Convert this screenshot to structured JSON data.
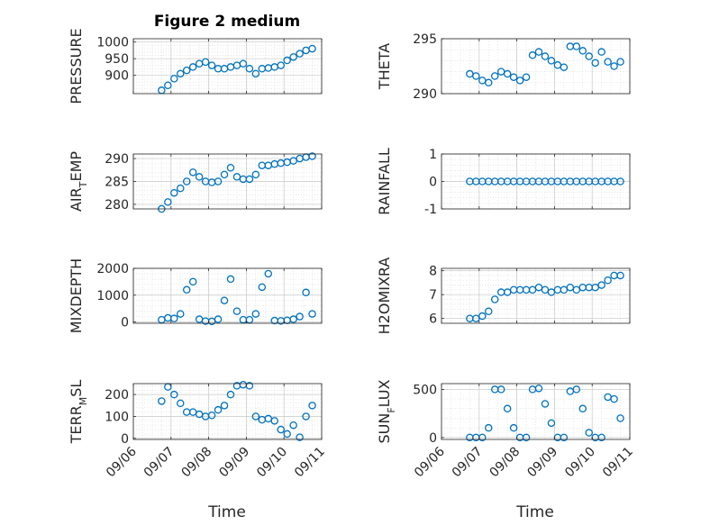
{
  "figure": {
    "title": "Figure 2 medium",
    "xlabel": "Time"
  },
  "style": {
    "marker_color": "#0072BD",
    "axis_color": "#262626",
    "grid_color": "#d9d9d9"
  },
  "chart_data": [
    {
      "type": "scatter",
      "ylabel": "PRESSURE",
      "ylabel_parts": [
        "PRESSURE"
      ],
      "title": "Figure 2 medium",
      "ylim": [
        845,
        1010
      ],
      "yticks": [
        900,
        950,
        1000
      ],
      "ytick_labels": [
        "900",
        "950",
        "1000"
      ],
      "x": [
        "09/06 18:00",
        "09/06 22:00",
        "09/07 02:00",
        "09/07 06:00",
        "09/07 10:00",
        "09/07 14:00",
        "09/07 18:00",
        "09/07 22:00",
        "09/08 02:00",
        "09/08 06:00",
        "09/08 10:00",
        "09/08 14:00",
        "09/08 18:00",
        "09/08 22:00",
        "09/09 02:00",
        "09/09 06:00",
        "09/09 10:00",
        "09/09 14:00",
        "09/09 18:00",
        "09/09 22:00",
        "09/10 02:00",
        "09/10 06:00",
        "09/10 10:00",
        "09/10 14:00",
        "09/10 18:00"
      ],
      "y": [
        855,
        870,
        890,
        905,
        915,
        925,
        935,
        940,
        930,
        920,
        920,
        925,
        930,
        935,
        920,
        905,
        920,
        922,
        925,
        930,
        945,
        955,
        965,
        975,
        980
      ]
    },
    {
      "type": "scatter",
      "ylabel": "THETA",
      "ylabel_parts": [
        "THETA"
      ],
      "ylim": [
        290,
        295
      ],
      "yticks": [
        290,
        295
      ],
      "ytick_labels": [
        "290",
        "295"
      ],
      "x": [
        "09/06 18:00",
        "09/06 22:00",
        "09/07 02:00",
        "09/07 06:00",
        "09/07 10:00",
        "09/07 14:00",
        "09/07 18:00",
        "09/07 22:00",
        "09/08 02:00",
        "09/08 06:00",
        "09/08 10:00",
        "09/08 14:00",
        "09/08 18:00",
        "09/08 22:00",
        "09/09 02:00",
        "09/09 06:00",
        "09/09 10:00",
        "09/09 14:00",
        "09/09 18:00",
        "09/09 22:00",
        "09/10 02:00",
        "09/10 06:00",
        "09/10 10:00",
        "09/10 14:00",
        "09/10 18:00"
      ],
      "y": [
        291.8,
        291.6,
        291.2,
        291.0,
        291.6,
        292.0,
        291.8,
        291.5,
        291.2,
        291.5,
        293.5,
        293.8,
        293.4,
        293.0,
        292.6,
        292.4,
        294.3,
        294.3,
        293.9,
        293.4,
        292.8,
        293.8,
        292.9,
        292.5,
        292.9
      ]
    },
    {
      "type": "scatter",
      "ylabel": "AIR_TEMP",
      "ylabel_parts": [
        "AIR",
        "T",
        "EMP"
      ],
      "ylim": [
        279,
        291
      ],
      "yticks": [
        280,
        285,
        290
      ],
      "ytick_labels": [
        "280",
        "285",
        "290"
      ],
      "x": [
        "09/06 18:00",
        "09/06 22:00",
        "09/07 02:00",
        "09/07 06:00",
        "09/07 10:00",
        "09/07 14:00",
        "09/07 18:00",
        "09/07 22:00",
        "09/08 02:00",
        "09/08 06:00",
        "09/08 10:00",
        "09/08 14:00",
        "09/08 18:00",
        "09/08 22:00",
        "09/09 02:00",
        "09/09 06:00",
        "09/09 10:00",
        "09/09 14:00",
        "09/09 18:00",
        "09/09 22:00",
        "09/10 02:00",
        "09/10 06:00",
        "09/10 10:00",
        "09/10 14:00",
        "09/10 18:00"
      ],
      "y": [
        279.0,
        280.5,
        282.5,
        283.5,
        285.0,
        287.0,
        286.0,
        285.0,
        284.8,
        285.0,
        286.5,
        288.0,
        286.0,
        285.5,
        285.5,
        286.5,
        288.5,
        288.5,
        288.8,
        289.0,
        289.2,
        289.5,
        290.0,
        290.3,
        290.5
      ]
    },
    {
      "type": "scatter",
      "ylabel": "RAINFALL",
      "ylabel_parts": [
        "RAINFALL"
      ],
      "ylim": [
        -1,
        1
      ],
      "yticks": [
        -1,
        0,
        1
      ],
      "ytick_labels": [
        "-1",
        "0",
        "1"
      ],
      "x": [
        "09/06 18:00",
        "09/06 22:00",
        "09/07 02:00",
        "09/07 06:00",
        "09/07 10:00",
        "09/07 14:00",
        "09/07 18:00",
        "09/07 22:00",
        "09/08 02:00",
        "09/08 06:00",
        "09/08 10:00",
        "09/08 14:00",
        "09/08 18:00",
        "09/08 22:00",
        "09/09 02:00",
        "09/09 06:00",
        "09/09 10:00",
        "09/09 14:00",
        "09/09 18:00",
        "09/09 22:00",
        "09/10 02:00",
        "09/10 06:00",
        "09/10 10:00",
        "09/10 14:00",
        "09/10 18:00"
      ],
      "y": [
        0,
        0,
        0,
        0,
        0,
        0,
        0,
        0,
        0,
        0,
        0,
        0,
        0,
        0,
        0,
        0,
        0,
        0,
        0,
        0,
        0,
        0,
        0,
        0,
        0
      ]
    },
    {
      "type": "scatter",
      "ylabel": "MIXDEPTH",
      "ylabel_parts": [
        "MIXDEPTH"
      ],
      "ylim": [
        -50,
        2000
      ],
      "yticks": [
        0,
        1000,
        2000
      ],
      "ytick_labels": [
        "0",
        "1000",
        "2000"
      ],
      "x": [
        "09/06 18:00",
        "09/06 22:00",
        "09/07 02:00",
        "09/07 06:00",
        "09/07 10:00",
        "09/07 14:00",
        "09/07 18:00",
        "09/07 22:00",
        "09/08 02:00",
        "09/08 06:00",
        "09/08 10:00",
        "09/08 14:00",
        "09/08 18:00",
        "09/08 22:00",
        "09/09 02:00",
        "09/09 06:00",
        "09/09 10:00",
        "09/09 14:00",
        "09/09 18:00",
        "09/09 22:00",
        "09/10 02:00",
        "09/10 06:00",
        "09/10 10:00",
        "09/10 14:00",
        "09/10 18:00"
      ],
      "y": [
        80,
        150,
        130,
        300,
        1200,
        1500,
        100,
        30,
        20,
        100,
        800,
        1600,
        400,
        80,
        80,
        300,
        1300,
        1800,
        50,
        40,
        60,
        100,
        200,
        1100,
        300
      ]
    },
    {
      "type": "scatter",
      "ylabel": "H2OMIXRA",
      "ylabel_parts": [
        "H2OMIXRA"
      ],
      "ylim": [
        5.8,
        8.1
      ],
      "yticks": [
        6,
        7,
        8
      ],
      "ytick_labels": [
        "6",
        "7",
        "8"
      ],
      "x": [
        "09/06 18:00",
        "09/06 22:00",
        "09/07 02:00",
        "09/07 06:00",
        "09/07 10:00",
        "09/07 14:00",
        "09/07 18:00",
        "09/07 22:00",
        "09/08 02:00",
        "09/08 06:00",
        "09/08 10:00",
        "09/08 14:00",
        "09/08 18:00",
        "09/08 22:00",
        "09/09 02:00",
        "09/09 06:00",
        "09/09 10:00",
        "09/09 14:00",
        "09/09 18:00",
        "09/09 22:00",
        "09/10 02:00",
        "09/10 06:00",
        "09/10 10:00",
        "09/10 14:00",
        "09/10 18:00"
      ],
      "y": [
        6.0,
        6.0,
        6.1,
        6.3,
        6.8,
        7.1,
        7.1,
        7.2,
        7.2,
        7.2,
        7.2,
        7.3,
        7.2,
        7.1,
        7.2,
        7.2,
        7.3,
        7.2,
        7.3,
        7.3,
        7.3,
        7.4,
        7.6,
        7.8,
        7.8
      ]
    },
    {
      "type": "scatter",
      "ylabel": "TERR_MSL",
      "ylabel_parts": [
        "TERR",
        "M",
        "SL"
      ],
      "ylim": [
        -5,
        250
      ],
      "yticks": [
        0,
        100,
        200
      ],
      "ytick_labels": [
        "0",
        "100",
        "200"
      ],
      "x": [
        "09/06 18:00",
        "09/06 22:00",
        "09/07 02:00",
        "09/07 06:00",
        "09/07 10:00",
        "09/07 14:00",
        "09/07 18:00",
        "09/07 22:00",
        "09/08 02:00",
        "09/08 06:00",
        "09/08 10:00",
        "09/08 14:00",
        "09/08 18:00",
        "09/08 22:00",
        "09/09 02:00",
        "09/09 06:00",
        "09/09 10:00",
        "09/09 14:00",
        "09/09 18:00",
        "09/09 22:00",
        "09/10 02:00",
        "09/10 06:00",
        "09/10 10:00",
        "09/10 14:00",
        "09/10 18:00"
      ],
      "y": [
        170,
        235,
        200,
        160,
        120,
        120,
        110,
        100,
        105,
        130,
        150,
        200,
        240,
        245,
        240,
        100,
        85,
        90,
        80,
        40,
        20,
        60,
        5,
        100,
        150
      ]
    },
    {
      "type": "scatter",
      "ylabel": "SUN_FLUX",
      "ylabel_parts": [
        "SUN",
        "F",
        "LUX"
      ],
      "ylim": [
        -20,
        560
      ],
      "yticks": [
        0,
        500
      ],
      "ytick_labels": [
        "0",
        "500"
      ],
      "x": [
        "09/06 18:00",
        "09/06 22:00",
        "09/07 02:00",
        "09/07 06:00",
        "09/07 10:00",
        "09/07 14:00",
        "09/07 18:00",
        "09/07 22:00",
        "09/08 02:00",
        "09/08 06:00",
        "09/08 10:00",
        "09/08 14:00",
        "09/08 18:00",
        "09/08 22:00",
        "09/09 02:00",
        "09/09 06:00",
        "09/09 10:00",
        "09/09 14:00",
        "09/09 18:00",
        "09/09 22:00",
        "09/10 02:00",
        "09/10 06:00",
        "09/10 10:00",
        "09/10 14:00",
        "09/10 18:00"
      ],
      "y": [
        0,
        0,
        0,
        100,
        500,
        500,
        300,
        100,
        0,
        0,
        500,
        510,
        350,
        150,
        0,
        0,
        480,
        500,
        300,
        50,
        0,
        0,
        420,
        400,
        200
      ]
    }
  ],
  "x_axis": {
    "xlim": [
      "09/06 00:00",
      "09/11 00:00"
    ],
    "ticks": [
      "09/06",
      "09/07",
      "09/08",
      "09/09",
      "09/10",
      "09/11"
    ]
  }
}
